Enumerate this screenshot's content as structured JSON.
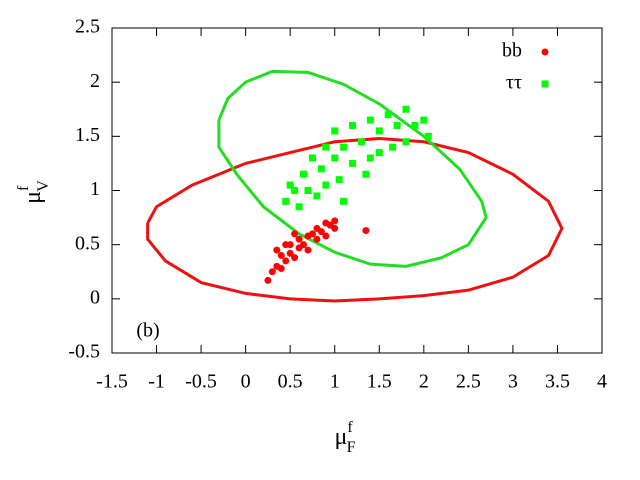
{
  "chart_data": {
    "type": "scatter",
    "x_label": {
      "base": "μ",
      "sup": "f",
      "sub": "F"
    },
    "y_label": {
      "base": "μ",
      "sup": "f",
      "sub": "V"
    },
    "annotation": "(b)",
    "xlim": [
      -1.5,
      4
    ],
    "xticks": [
      -1.5,
      -1,
      -0.5,
      0,
      0.5,
      1,
      1.5,
      2,
      2.5,
      3,
      3.5,
      4
    ],
    "ylim": [
      -0.5,
      2.5
    ],
    "yticks": [
      -0.5,
      0,
      0.5,
      1,
      1.5,
      2,
      2.5
    ],
    "series": [
      {
        "name": "bb",
        "color": "#ff0000",
        "marker": "circle",
        "x": [
          0.25,
          0.3,
          0.35,
          0.4,
          0.4,
          0.45,
          0.5,
          0.5,
          0.55,
          0.6,
          0.6,
          0.65,
          0.7,
          0.7,
          0.75,
          0.8,
          0.8,
          0.85,
          0.9,
          0.9,
          0.95,
          1.0,
          1.0,
          0.55,
          0.35,
          0.45,
          1.35
        ],
        "y": [
          0.17,
          0.25,
          0.3,
          0.28,
          0.4,
          0.35,
          0.42,
          0.5,
          0.38,
          0.47,
          0.55,
          0.5,
          0.58,
          0.45,
          0.6,
          0.55,
          0.65,
          0.62,
          0.7,
          0.58,
          0.68,
          0.72,
          0.65,
          0.6,
          0.45,
          0.5,
          0.63
        ]
      },
      {
        "name": "ττ",
        "color": "#00ff00",
        "marker": "square",
        "x": [
          0.45,
          0.5,
          0.6,
          0.65,
          0.7,
          0.75,
          0.8,
          0.85,
          0.9,
          0.9,
          1.0,
          1.0,
          1.05,
          1.1,
          1.2,
          1.2,
          1.3,
          1.35,
          1.4,
          1.5,
          1.5,
          1.6,
          1.65,
          1.7,
          1.8,
          1.8,
          1.9,
          2.0,
          2.05,
          1.1,
          0.55,
          1.4
        ],
        "y": [
          0.9,
          1.05,
          0.85,
          1.15,
          1.0,
          1.3,
          0.95,
          1.2,
          1.4,
          1.05,
          1.3,
          1.55,
          1.1,
          1.4,
          1.25,
          1.6,
          1.45,
          1.15,
          1.65,
          1.35,
          1.55,
          1.7,
          1.4,
          1.6,
          1.75,
          1.45,
          1.6,
          1.65,
          1.5,
          0.9,
          1.0,
          1.3
        ]
      }
    ],
    "contours": [
      {
        "color": "#ee1111",
        "x": [
          -1.1,
          -1.0,
          -0.6,
          0,
          0.5,
          1.0,
          1.5,
          2.0,
          2.5,
          3.0,
          3.4,
          3.55,
          3.4,
          3.0,
          2.5,
          2.0,
          1.5,
          1.0,
          0.5,
          0,
          -0.5,
          -0.9,
          -1.1,
          -1.1
        ],
        "y": [
          0.7,
          0.85,
          1.05,
          1.25,
          1.35,
          1.45,
          1.48,
          1.45,
          1.35,
          1.15,
          0.9,
          0.65,
          0.4,
          0.2,
          0.08,
          0.03,
          0,
          -0.02,
          0,
          0.05,
          0.15,
          0.35,
          0.55,
          0.7
        ]
      },
      {
        "color": "#22dd22",
        "x": [
          -0.3,
          -0.2,
          0,
          0.3,
          0.7,
          1.1,
          1.5,
          2.0,
          2.4,
          2.65,
          2.7,
          2.5,
          2.2,
          1.8,
          1.4,
          1.0,
          0.6,
          0.2,
          -0.1,
          -0.3,
          -0.3
        ],
        "y": [
          1.65,
          1.85,
          2.0,
          2.1,
          2.09,
          1.98,
          1.8,
          1.5,
          1.2,
          0.9,
          0.75,
          0.5,
          0.38,
          0.3,
          0.32,
          0.43,
          0.6,
          0.85,
          1.15,
          1.4,
          1.65
        ]
      }
    ]
  }
}
